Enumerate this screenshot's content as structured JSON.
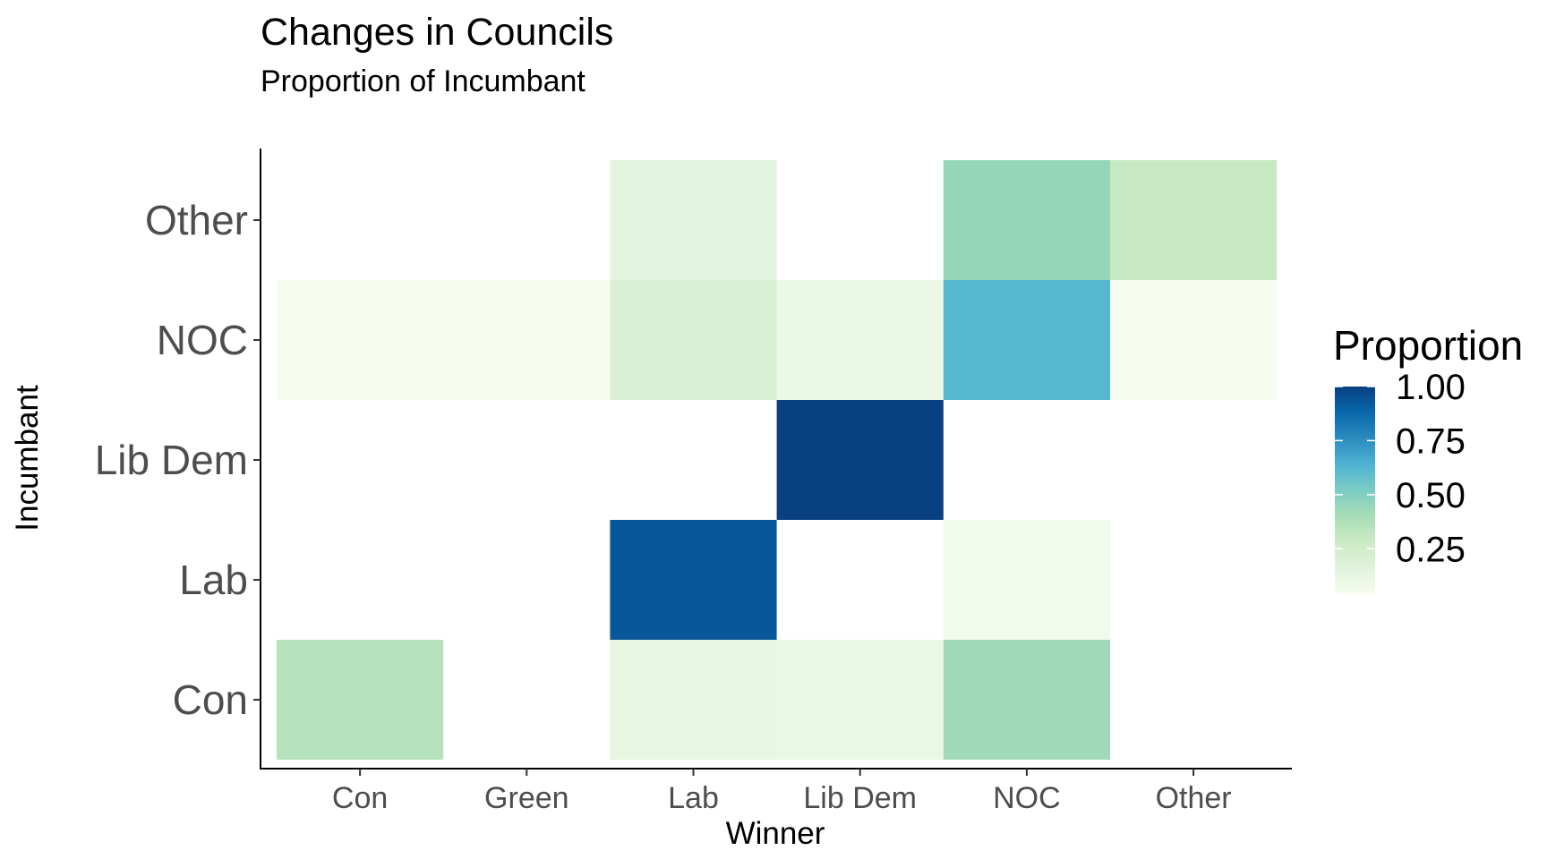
{
  "chart_data": {
    "type": "heatmap",
    "title": "Changes in Councils",
    "subtitle": "Proportion of Incumbant",
    "xlabel": "Winner",
    "ylabel": "Incumbant",
    "x_categories": [
      "Con",
      "Green",
      "Lab",
      "Lib Dem",
      "NOC",
      "Other"
    ],
    "y_categories": [
      "Con",
      "Lab",
      "Lib Dem",
      "NOC",
      "Other"
    ],
    "cells": [
      {
        "x": "Con",
        "y": "Con",
        "value": 0.35
      },
      {
        "x": "Lab",
        "y": "Con",
        "value": 0.12
      },
      {
        "x": "Lib Dem",
        "y": "Con",
        "value": 0.11
      },
      {
        "x": "NOC",
        "y": "Con",
        "value": 0.42
      },
      {
        "x": "Lab",
        "y": "Lab",
        "value": 0.93
      },
      {
        "x": "NOC",
        "y": "Lab",
        "value": 0.07
      },
      {
        "x": "Lib Dem",
        "y": "Lib Dem",
        "value": 1.0
      },
      {
        "x": "Con",
        "y": "NOC",
        "value": 0.05
      },
      {
        "x": "Green",
        "y": "NOC",
        "value": 0.04
      },
      {
        "x": "Lab",
        "y": "NOC",
        "value": 0.2
      },
      {
        "x": "Lib Dem",
        "y": "NOC",
        "value": 0.1
      },
      {
        "x": "NOC",
        "y": "NOC",
        "value": 0.62
      },
      {
        "x": "Other",
        "y": "NOC",
        "value": 0.04
      },
      {
        "x": "Lab",
        "y": "Other",
        "value": 0.15
      },
      {
        "x": "NOC",
        "y": "Other",
        "value": 0.45
      },
      {
        "x": "Other",
        "y": "Other",
        "value": 0.3
      }
    ],
    "legend": {
      "title": "Proportion",
      "position": "right",
      "ticks": [
        1.0,
        0.75,
        0.5,
        0.25
      ],
      "tick_labels": [
        "1.00",
        "0.75",
        "0.50",
        "0.25"
      ],
      "range": [
        0.04,
        1.0
      ]
    },
    "colors": [
      "#f7fcf0",
      "#e0f3db",
      "#ccebc5",
      "#a8ddb5",
      "#7bccc4",
      "#4eb3d3",
      "#2b8cbe",
      "#0868ac",
      "#084081"
    ],
    "grid": false
  }
}
